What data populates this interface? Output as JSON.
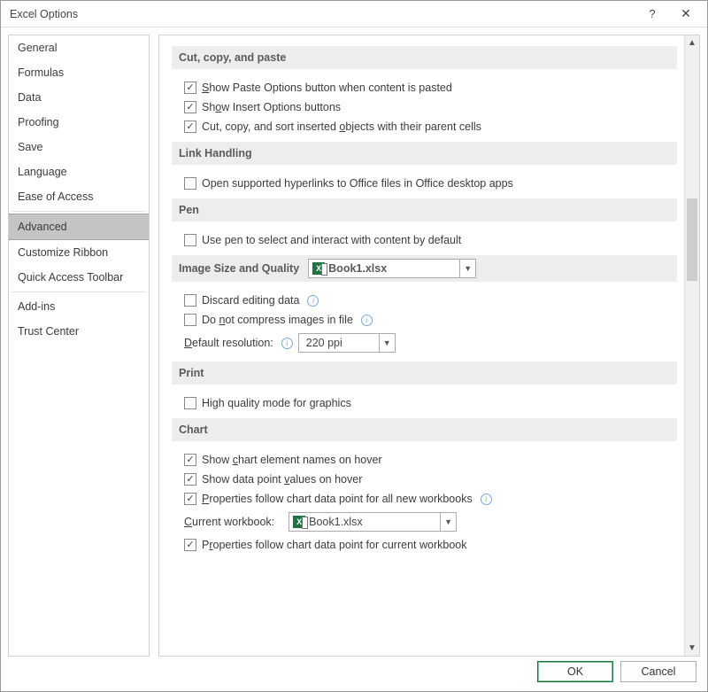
{
  "title": "Excel Options",
  "sidebar": {
    "items": [
      "General",
      "Formulas",
      "Data",
      "Proofing",
      "Save",
      "Language",
      "Ease of Access",
      "Advanced",
      "Customize Ribbon",
      "Quick Access Toolbar",
      "Add-ins",
      "Trust Center"
    ],
    "selected_index": 7,
    "separators_after": [
      6,
      9
    ]
  },
  "sections": {
    "cut": {
      "title": "Cut, copy, and paste",
      "opts": [
        {
          "checked": true,
          "pre": "",
          "u": "S",
          "post": "how Paste Options button when content is pasted"
        },
        {
          "checked": true,
          "pre": "Sh",
          "u": "o",
          "post": "w Insert Options buttons"
        },
        {
          "checked": true,
          "pre": "Cut, copy, and sort inserted ",
          "u": "o",
          "post": "bjects with their parent cells"
        }
      ]
    },
    "link": {
      "title": "Link Handling",
      "opts": [
        {
          "checked": false,
          "pre": "Open supported hyperlinks to Office files in Office desktop apps",
          "u": "",
          "post": ""
        }
      ]
    },
    "pen": {
      "title": "Pen",
      "opts": [
        {
          "checked": false,
          "pre": "Use pen to select and interact with content by default",
          "u": "",
          "post": ""
        }
      ]
    },
    "image": {
      "title": "Image Size and Quality",
      "combo": "Book1.xlsx",
      "opts": [
        {
          "checked": false,
          "pre": "Discard editing data",
          "info": true
        },
        {
          "checked": false,
          "pre": "Do ",
          "u": "n",
          "post": "ot compress images in file",
          "info": true
        }
      ],
      "res_label_pre": "",
      "res_u": "D",
      "res_label_post": "efault resolution:",
      "res_value": "220 ppi"
    },
    "print": {
      "title": "Print",
      "opts": [
        {
          "checked": false,
          "pre": "High quality mode for graphics",
          "u": "",
          "post": ""
        }
      ]
    },
    "chart": {
      "title": "Chart",
      "opts": [
        {
          "checked": true,
          "pre": "Show ",
          "u": "c",
          "post": "hart element names on hover"
        },
        {
          "checked": true,
          "pre": "Show data point ",
          "u": "v",
          "post": "alues on hover"
        },
        {
          "checked": true,
          "pre": "",
          "u": "P",
          "post": "roperties follow chart data point for all new workbooks",
          "info": true
        }
      ],
      "cw_pre": "",
      "cw_u": "C",
      "cw_post": "urrent workbook:",
      "cw_combo": "Book1.xlsx",
      "opt4": {
        "checked": true,
        "pre": "P",
        "u": "r",
        "post": "operties follow chart data point for current workbook"
      }
    }
  },
  "scrollbar": {
    "thumb_top_pct": 25,
    "thumb_height_pct": 14
  },
  "footer": {
    "ok": "OK",
    "cancel": "Cancel"
  }
}
